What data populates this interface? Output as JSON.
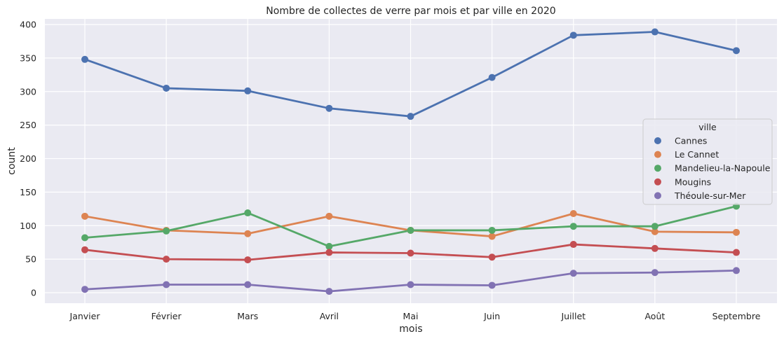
{
  "chart_data": {
    "type": "line",
    "title": "Nombre de collectes de verre par mois et par ville en 2020",
    "xlabel": "mois",
    "ylabel": "count",
    "categories": [
      "Janvier",
      "Février",
      "Mars",
      "Avril",
      "Mai",
      "Juin",
      "Juillet",
      "Août",
      "Septembre"
    ],
    "ylim": [
      -15,
      410
    ],
    "yticks": [
      0,
      50,
      100,
      150,
      200,
      250,
      300,
      350,
      400
    ],
    "grid": true,
    "legend": {
      "title": "ville",
      "placement": "right"
    },
    "series": [
      {
        "name": "Cannes",
        "color": "#4c72b0",
        "values": [
          348,
          305,
          301,
          275,
          263,
          321,
          384,
          389,
          361
        ]
      },
      {
        "name": "Le Cannet",
        "color": "#dd8452",
        "values": [
          114,
          93,
          88,
          114,
          93,
          84,
          118,
          91,
          90
        ]
      },
      {
        "name": "Mandelieu-la-Napoule",
        "color": "#55a868",
        "values": [
          82,
          92,
          119,
          69,
          93,
          93,
          99,
          99,
          129
        ]
      },
      {
        "name": "Mougins",
        "color": "#c44e52",
        "values": [
          64,
          50,
          49,
          60,
          59,
          53,
          72,
          66,
          60
        ]
      },
      {
        "name": "Théoule-sur-Mer",
        "color": "#8172b3",
        "values": [
          5,
          12,
          12,
          2,
          12,
          11,
          29,
          30,
          33
        ]
      }
    ]
  }
}
